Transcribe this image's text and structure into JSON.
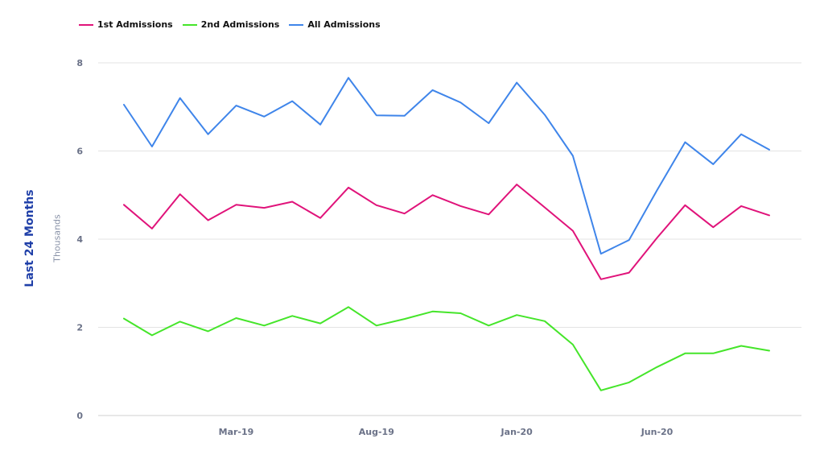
{
  "chart_data": {
    "type": "line",
    "ylabel": "Thousands",
    "side_title": "Last 24 Months",
    "ylim": [
      0,
      8
    ],
    "yticks": [
      0,
      2,
      4,
      6,
      8
    ],
    "x_tick_labels": [
      {
        "index": 4,
        "label": "Mar-19"
      },
      {
        "index": 9,
        "label": "Aug-19"
      },
      {
        "index": 14,
        "label": "Jan-20"
      },
      {
        "index": 19,
        "label": "Jun-20"
      }
    ],
    "legend_position": "top-left",
    "grid": true,
    "series": [
      {
        "name": "1st Admissions",
        "color": "#e0137a",
        "values": [
          4.78,
          4.24,
          5.02,
          4.43,
          4.78,
          4.71,
          4.85,
          4.48,
          5.17,
          4.77,
          4.58,
          5.0,
          4.75,
          4.56,
          5.24,
          4.72,
          4.19,
          3.09,
          3.24,
          4.03,
          4.77,
          4.27,
          4.75,
          4.54
        ]
      },
      {
        "name": "2nd Admissions",
        "color": "#45e52a",
        "values": [
          2.2,
          1.82,
          2.13,
          1.91,
          2.21,
          2.04,
          2.26,
          2.09,
          2.46,
          2.04,
          2.19,
          2.36,
          2.32,
          2.04,
          2.28,
          2.14,
          1.61,
          0.57,
          0.75,
          1.1,
          1.41,
          1.41,
          1.58,
          1.47
        ]
      },
      {
        "name": "All Admissions",
        "color": "#3f85ea",
        "values": [
          7.05,
          6.1,
          7.2,
          6.38,
          7.03,
          6.78,
          7.13,
          6.6,
          7.66,
          6.81,
          6.8,
          7.38,
          7.1,
          6.63,
          7.55,
          6.82,
          5.89,
          3.67,
          3.98,
          5.11,
          6.2,
          5.7,
          6.38,
          6.03
        ]
      }
    ]
  }
}
